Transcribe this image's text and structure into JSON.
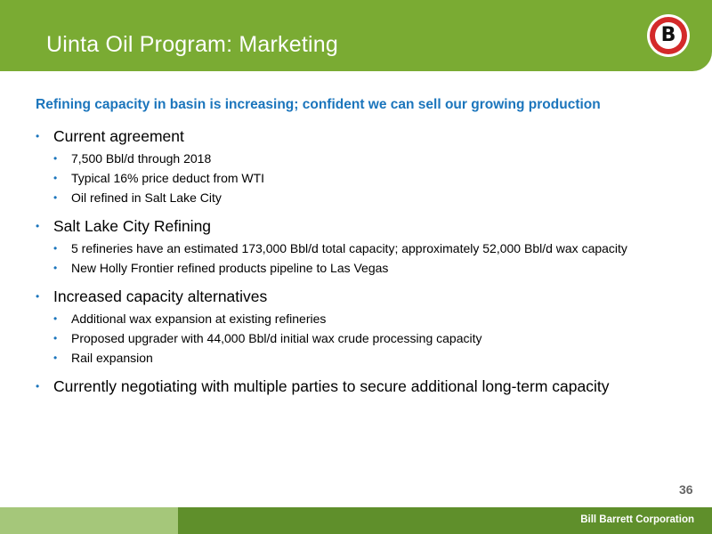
{
  "header": {
    "title": "Uinta Oil Program: Marketing",
    "logo_letter": "B",
    "accent_color": "#7aab33"
  },
  "subtitle": "Refining capacity in basin is increasing; confident we can sell our growing production",
  "sections": [
    {
      "heading": "Current agreement",
      "items": [
        "7,500 Bbl/d through 2018",
        "Typical 16% price deduct from WTI",
        "Oil refined in Salt Lake City"
      ]
    },
    {
      "heading": "Salt Lake City Refining",
      "items": [
        "5 refineries have an estimated 173,000 Bbl/d total capacity; approximately 52,000 Bbl/d wax capacity",
        "New Holly Frontier refined products pipeline to Las Vegas"
      ]
    },
    {
      "heading": "Increased capacity alternatives",
      "items": [
        "Additional wax expansion at existing refineries",
        "Proposed upgrader with 44,000 Bbl/d initial wax crude processing capacity",
        "Rail expansion"
      ]
    },
    {
      "heading": "Currently negotiating with multiple parties to secure additional long-term capacity",
      "items": []
    }
  ],
  "bullet_symbol": "•",
  "page_number": "36",
  "footer": {
    "company": "Bill Barrett Corporation"
  }
}
